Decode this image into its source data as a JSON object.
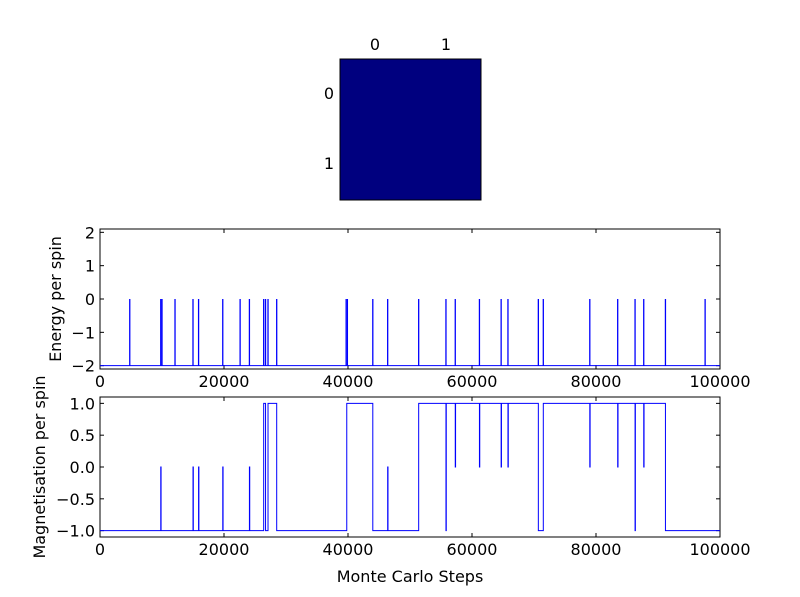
{
  "chart_data": [
    {
      "type": "heatmap",
      "x_ticks": [
        "0",
        "1"
      ],
      "y_ticks": [
        "0",
        "1"
      ],
      "grid": [
        [
          0,
          0
        ],
        [
          0,
          0
        ]
      ],
      "colors": {
        "cell": "#00007f",
        "frame": "#000000"
      }
    },
    {
      "type": "line",
      "xlabel": "",
      "ylabel": "Energy per spin",
      "xlim": [
        0,
        100000
      ],
      "ylim": [
        -2.1,
        2.1
      ],
      "x_ticks": [
        0,
        20000,
        40000,
        60000,
        80000,
        100000
      ],
      "y_ticks": [
        -2,
        -1,
        0,
        1,
        2
      ],
      "grid": false,
      "color": "#0000ff",
      "baseline": -2,
      "spike_value": 0,
      "spikes_x": [
        4800,
        9800,
        10000,
        12100,
        15000,
        15900,
        19800,
        22600,
        24100,
        26400,
        26700,
        27100,
        28500,
        39700,
        39900,
        44000,
        46400,
        51400,
        55800,
        57300,
        61200,
        64700,
        65800,
        70700,
        71500,
        79000,
        83500,
        86300,
        87700,
        91200,
        97600
      ]
    },
    {
      "type": "line",
      "xlabel": "Monte Carlo Steps",
      "ylabel": "Magnetisation per spin",
      "xlim": [
        0,
        100000
      ],
      "ylim": [
        -1.1,
        1.1
      ],
      "x_ticks": [
        0,
        20000,
        40000,
        60000,
        80000,
        100000
      ],
      "y_ticks": [
        -1.0,
        -0.5,
        0.0,
        0.5,
        1.0
      ],
      "grid": false,
      "color": "#0000ff",
      "x": [
        0,
        9800,
        9800,
        9850,
        9850,
        15000,
        15000,
        15050,
        15050,
        15900,
        15900,
        15950,
        15950,
        19800,
        19800,
        19850,
        19850,
        24100,
        24100,
        24150,
        24150,
        26400,
        26400,
        26700,
        26700,
        27100,
        27100,
        28500,
        28500,
        39800,
        39800,
        44000,
        44000,
        46400,
        46400,
        46450,
        46450,
        51400,
        51400,
        55800,
        55800,
        55850,
        55850,
        57300,
        57300,
        57350,
        57350,
        61200,
        61200,
        61250,
        61250,
        64700,
        64700,
        64750,
        64750,
        65800,
        65800,
        65850,
        65850,
        70700,
        70700,
        71500,
        71500,
        79000,
        79000,
        79050,
        79050,
        83500,
        83500,
        83550,
        83550,
        86300,
        86300,
        86350,
        86350,
        87700,
        87700,
        87750,
        87750,
        91200,
        91200,
        100000
      ],
      "y": [
        -1,
        -1,
        0,
        0,
        -1,
        -1,
        0,
        0,
        -1,
        -1,
        0,
        0,
        -1,
        -1,
        0,
        0,
        -1,
        -1,
        0,
        0,
        -1,
        -1,
        1,
        1,
        -1,
        -1,
        1,
        1,
        -1,
        -1,
        1,
        1,
        -1,
        -1,
        0,
        0,
        -1,
        -1,
        1,
        1,
        -1,
        -1,
        1,
        1,
        0,
        0,
        1,
        1,
        0,
        0,
        1,
        1,
        0,
        0,
        1,
        1,
        0,
        0,
        1,
        1,
        -1,
        -1,
        1,
        1,
        0,
        0,
        1,
        1,
        0,
        0,
        1,
        1,
        -1,
        -1,
        1,
        1,
        0,
        0,
        1,
        1,
        -1,
        -1
      ]
    }
  ]
}
